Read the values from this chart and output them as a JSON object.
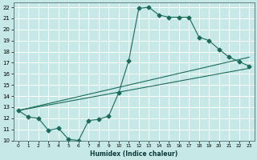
{
  "xlabel": "Humidex (Indice chaleur)",
  "bg_color": "#c6e8e6",
  "grid_color": "#ffffff",
  "line_color": "#1a6b5a",
  "xlim": [
    -0.5,
    23.5
  ],
  "ylim": [
    10,
    22.4
  ],
  "xticks": [
    0,
    1,
    2,
    3,
    4,
    5,
    6,
    7,
    8,
    9,
    10,
    11,
    12,
    13,
    14,
    15,
    16,
    17,
    18,
    19,
    20,
    21,
    22,
    23
  ],
  "yticks": [
    10,
    11,
    12,
    13,
    14,
    15,
    16,
    17,
    18,
    19,
    20,
    21,
    22
  ],
  "line1_x": [
    0,
    1,
    2,
    3,
    4,
    5,
    6,
    7,
    8,
    9,
    10,
    11,
    12,
    13,
    14,
    15,
    16,
    17,
    18,
    19,
    20,
    21,
    22,
    23
  ],
  "line1_y": [
    12.7,
    12.1,
    12.0,
    10.9,
    11.1,
    10.1,
    10.0,
    11.8,
    11.9,
    12.2,
    14.3,
    17.2,
    21.9,
    22.0,
    21.3,
    21.1,
    21.1,
    21.1,
    19.3,
    19.0,
    18.2,
    17.5,
    17.1,
    16.7
  ],
  "line2_x": [
    0,
    23
  ],
  "line2_y": [
    12.7,
    16.5
  ],
  "line3_x": [
    0,
    23
  ],
  "line3_y": [
    12.7,
    17.5
  ]
}
